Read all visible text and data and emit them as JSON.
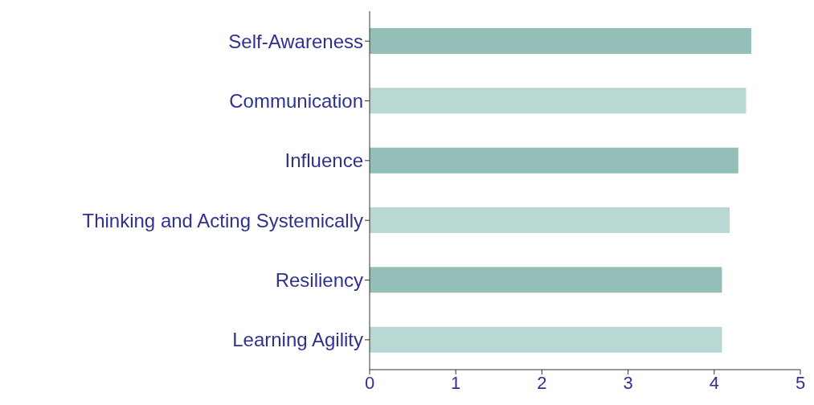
{
  "chart_data": {
    "type": "bar",
    "orientation": "horizontal",
    "categories": [
      "Self-Awareness",
      "Communication",
      "Influence",
      "Thinking and Acting Systemically",
      "Resiliency",
      "Learning Agility"
    ],
    "values": [
      4.43,
      4.37,
      4.28,
      4.18,
      4.09,
      4.09
    ],
    "colors": [
      "#93bfb8",
      "#b9d8d3",
      "#93bfb8",
      "#b9d8d3",
      "#93bfb8",
      "#b9d8d3"
    ],
    "xlim": [
      0,
      5
    ],
    "xticks": [
      0,
      1,
      2,
      3,
      4,
      5
    ],
    "grid": false
  }
}
